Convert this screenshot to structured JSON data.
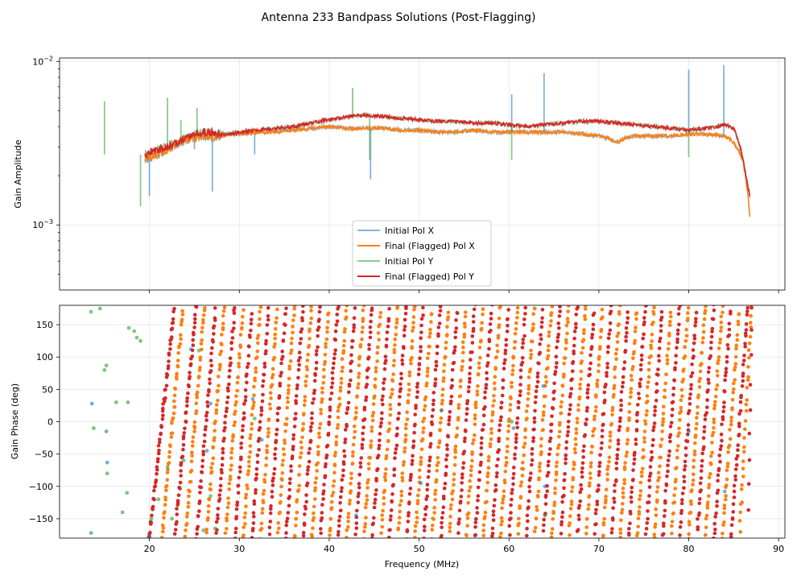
{
  "figure_title": "Antenna 233 Bandpass Solutions (Post-Flagging)",
  "colors": {
    "initial_x": "#1f77b4",
    "final_x": "#ff7f0e",
    "initial_y": "#2ca02c",
    "final_y": "#d62728",
    "grid": "#b0b0b0",
    "text": "#000000"
  },
  "chart_data": [
    {
      "type": "line",
      "panel": "amplitude",
      "ylabel": "Gain Amplitude",
      "xlabel": "",
      "yscale": "log",
      "xlim": [
        10,
        90.7
      ],
      "ylim": [
        0.0004,
        0.0105
      ],
      "xticks": [
        20,
        30,
        40,
        50,
        60,
        70,
        80,
        90
      ],
      "yticks": [
        {
          "value": 0.001,
          "base": "10",
          "exp": "−3"
        },
        {
          "value": 0.01,
          "base": "10",
          "exp": "−2"
        }
      ],
      "grid": true,
      "legend_position": "lower-center",
      "legend": [
        {
          "label": "Initial Pol X",
          "series": "initial_x"
        },
        {
          "label": "Final (Flagged) Pol X",
          "series": "final_x"
        },
        {
          "label": "Initial Pol Y",
          "series": "initial_y"
        },
        {
          "label": "Final (Flagged) Pol Y",
          "series": "final_y"
        }
      ],
      "series": [
        {
          "name": "Final (Flagged) Pol X",
          "key": "final_x",
          "x": [
            19.5,
            20,
            21,
            22,
            23,
            24,
            25,
            26,
            27,
            28,
            29,
            30,
            32,
            34,
            36,
            38,
            40,
            42,
            44,
            46,
            48,
            50,
            52,
            54,
            56,
            58,
            60,
            62,
            64,
            66,
            68,
            70,
            71,
            72,
            73,
            74,
            76,
            78,
            80,
            82,
            84,
            85,
            85.5,
            86,
            86.3,
            86.6,
            86.8
          ],
          "y": [
            0.0025,
            0.0026,
            0.0027,
            0.0029,
            0.0031,
            0.0033,
            0.0034,
            0.0035,
            0.0034,
            0.0035,
            0.0036,
            0.0036,
            0.0037,
            0.0037,
            0.0038,
            0.0039,
            0.004,
            0.0039,
            0.0039,
            0.0039,
            0.0038,
            0.0038,
            0.0037,
            0.0037,
            0.0038,
            0.0037,
            0.0037,
            0.0037,
            0.0037,
            0.0037,
            0.0036,
            0.0035,
            0.0034,
            0.0032,
            0.0034,
            0.0035,
            0.0035,
            0.0035,
            0.0036,
            0.0036,
            0.0035,
            0.0032,
            0.0029,
            0.0025,
            0.002,
            0.0015,
            0.0011
          ]
        },
        {
          "name": "Final (Flagged) Pol Y",
          "key": "final_y",
          "x": [
            19.5,
            20,
            21,
            22,
            23,
            24,
            25,
            26,
            27,
            28,
            29,
            30,
            32,
            34,
            36,
            38,
            40,
            42,
            44,
            46,
            48,
            50,
            52,
            54,
            56,
            58,
            60,
            62,
            64,
            66,
            68,
            70,
            72,
            74,
            76,
            78,
            80,
            82,
            84,
            85,
            85.5,
            86,
            86.3,
            86.6,
            86.8
          ],
          "y": [
            0.0027,
            0.0028,
            0.0029,
            0.003,
            0.0032,
            0.0034,
            0.0036,
            0.0037,
            0.0037,
            0.0036,
            0.0036,
            0.0037,
            0.0038,
            0.0039,
            0.004,
            0.0042,
            0.0044,
            0.0046,
            0.0047,
            0.0046,
            0.0045,
            0.0044,
            0.0043,
            0.0043,
            0.0042,
            0.0042,
            0.0041,
            0.004,
            0.0041,
            0.0042,
            0.0043,
            0.0043,
            0.0042,
            0.0041,
            0.004,
            0.0039,
            0.0038,
            0.0039,
            0.0041,
            0.0039,
            0.0033,
            0.0026,
            0.0021,
            0.0017,
            0.0015
          ]
        },
        {
          "name": "Initial Pol X",
          "key": "initial_x",
          "x": [
            20,
            25,
            26,
            27,
            31.7,
            44.6,
            60.3,
            63.9,
            80,
            83.9
          ],
          "y": [
            0.0015,
            0.0029,
            0.0033,
            0.0016,
            0.0027,
            0.0019,
            0.0063,
            0.0085,
            0.0089,
            0.0095
          ]
        },
        {
          "name": "Initial Pol Y",
          "key": "initial_y",
          "x": [
            15,
            19,
            20,
            22,
            23.5,
            25.3,
            42.6,
            44.5,
            60.3,
            80
          ],
          "y": [
            0.0057,
            0.0013,
            0.0027,
            0.006,
            0.0044,
            0.0052,
            0.0069,
            0.0025,
            0.0025,
            0.0026
          ]
        }
      ]
    },
    {
      "type": "scatter",
      "panel": "phase",
      "ylabel": "Gain Phase (deg)",
      "xlabel": "Frequency (MHz)",
      "xlim": [
        10,
        90.7
      ],
      "ylim": [
        -180,
        180
      ],
      "xticks": [
        20,
        30,
        40,
        50,
        60,
        70,
        80,
        90
      ],
      "yticks": [
        -150,
        -100,
        -50,
        0,
        50,
        100,
        150
      ],
      "grid": true,
      "phase_wrap_frequencies_mhz": [
        20,
        22.8,
        25.2,
        27.4,
        29.5,
        31.4,
        33.3,
        35.2,
        37.1,
        39,
        41,
        42.9,
        44.8,
        46.7,
        48.6,
        50.5,
        52.4,
        54.3,
        56.2,
        58.1,
        60,
        61.9,
        63.8,
        65.7,
        67.6,
        69.5,
        71.4,
        73.3,
        75.2,
        77.1,
        79,
        80.9,
        82.8,
        84.7,
        86.6
      ],
      "series": [
        {
          "name": "Final (Flagged) Pol X",
          "key": "final_x",
          "x_range": [
            20,
            87
          ],
          "wrap_period_mhz": 3.8
        },
        {
          "name": "Final (Flagged) Pol Y",
          "key": "final_y",
          "x_range": [
            19.8,
            87
          ],
          "wrap_period_mhz": 3.8
        },
        {
          "name": "Initial Pol X",
          "key": "initial_x",
          "x": [
            13.5,
            13.6,
            15.2,
            15.3,
            19.9,
            24.6,
            26.4,
            26.8,
            31.5,
            32.5,
            43,
            50.2,
            52.5,
            60.5,
            63.8,
            64,
            80,
            84
          ],
          "y": [
            -172,
            28,
            -15,
            -63,
            -178,
            112,
            -45,
            28,
            35,
            -28,
            -145,
            -95,
            18,
            -10,
            55,
            -100,
            -15,
            -108
          ]
        },
        {
          "name": "Initial Pol Y",
          "key": "initial_y",
          "x": [
            13.5,
            13.8,
            14.5,
            15,
            15.2,
            15.3,
            16.3,
            17,
            17.5,
            17.6,
            17.7,
            18.3,
            18.6,
            19,
            20.2,
            21,
            22,
            22.5,
            23.8,
            25.5,
            26,
            26.8,
            27.3,
            31.7,
            60.3,
            64
          ],
          "y": [
            170,
            -10,
            175,
            80,
            87,
            -80,
            30,
            -140,
            -110,
            30,
            145,
            140,
            130,
            125,
            -150,
            -120,
            -70,
            -150,
            -60,
            110,
            -168,
            -115,
            -165,
            5,
            0,
            -145
          ]
        }
      ]
    }
  ]
}
